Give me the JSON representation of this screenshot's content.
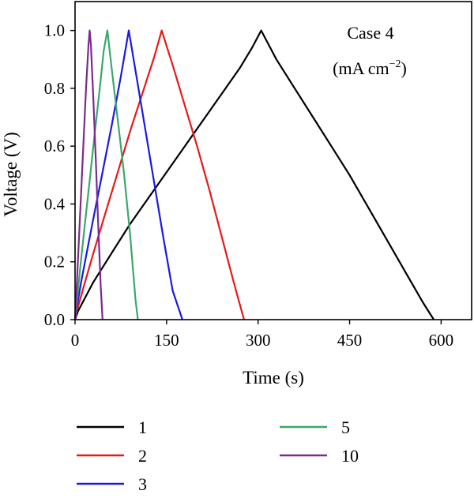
{
  "chart_data": {
    "type": "line",
    "annotation": {
      "line1": "Case 4",
      "line2": "(mA cm",
      "line2_sup": "−2",
      "line2_end": ")"
    },
    "xlabel": "Time (s)",
    "ylabel": "Voltage (V)",
    "xlim": [
      0,
      650
    ],
    "ylim": [
      0,
      1.1
    ],
    "xticks": [
      0,
      150,
      300,
      450,
      600
    ],
    "xtick_labels": [
      "0",
      "150",
      "300",
      "450",
      "600"
    ],
    "yticks": [
      0.0,
      0.2,
      0.4,
      0.6,
      0.8,
      1.0
    ],
    "ytick_labels": [
      "0.0",
      "0.2",
      "0.4",
      "0.6",
      "0.8",
      "1.0"
    ],
    "grid": false,
    "legend_position": "bottom",
    "series": [
      {
        "name": "1",
        "color": "#000000",
        "x": [
          0,
          5,
          30,
          60,
          90,
          120,
          150,
          180,
          210,
          240,
          270,
          290,
          305,
          315,
          330,
          360,
          390,
          420,
          450,
          480,
          510,
          540,
          570,
          588
        ],
        "y": [
          0,
          0.03,
          0.13,
          0.23,
          0.33,
          0.42,
          0.51,
          0.6,
          0.69,
          0.78,
          0.87,
          0.94,
          1.0,
          0.96,
          0.9,
          0.8,
          0.7,
          0.6,
          0.5,
          0.39,
          0.28,
          0.17,
          0.06,
          0.0
        ]
      },
      {
        "name": "2",
        "color": "#e8191a",
        "x": [
          0,
          3,
          15,
          30,
          50,
          70,
          90,
          110,
          130,
          142,
          148,
          160,
          180,
          200,
          220,
          240,
          260,
          277
        ],
        "y": [
          0,
          0.03,
          0.12,
          0.23,
          0.37,
          0.51,
          0.65,
          0.78,
          0.91,
          1.0,
          0.96,
          0.88,
          0.74,
          0.6,
          0.45,
          0.29,
          0.13,
          0.0
        ]
      },
      {
        "name": "3",
        "color": "#1a1ae0",
        "x": [
          0,
          2,
          10,
          20,
          30,
          45,
          60,
          75,
          88,
          92,
          100,
          115,
          130,
          145,
          160,
          176
        ],
        "y": [
          0,
          0.03,
          0.13,
          0.24,
          0.35,
          0.51,
          0.67,
          0.84,
          1.0,
          0.95,
          0.85,
          0.66,
          0.47,
          0.28,
          0.1,
          0.0
        ]
      },
      {
        "name": "5",
        "color": "#3aa86b",
        "x": [
          0,
          2,
          8,
          16,
          24,
          32,
          40,
          47,
          53,
          60,
          70,
          80,
          90,
          99,
          103
        ],
        "y": [
          0,
          0.04,
          0.17,
          0.33,
          0.48,
          0.64,
          0.79,
          0.93,
          1.0,
          0.87,
          0.69,
          0.51,
          0.3,
          0.07,
          0.0
        ]
      },
      {
        "name": "10",
        "color": "#7b2a8e",
        "x": [
          0,
          2,
          6,
          10,
          14,
          18,
          22,
          24,
          26,
          30,
          34,
          38,
          42,
          45
        ],
        "y": [
          0,
          0.08,
          0.26,
          0.44,
          0.62,
          0.8,
          0.95,
          1.0,
          0.95,
          0.76,
          0.55,
          0.33,
          0.12,
          0.0
        ]
      }
    ]
  }
}
